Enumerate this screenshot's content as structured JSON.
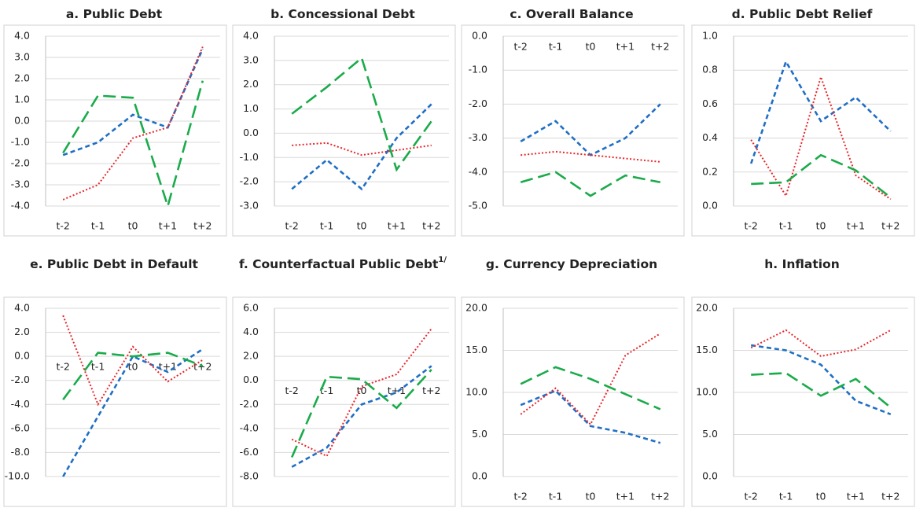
{
  "chart_data": [
    {
      "type": "line",
      "title": "a. Public Debt",
      "categories": [
        "t-2",
        "t-1",
        "t0",
        "t+1",
        "t+2"
      ],
      "x_axis_position": "bottom",
      "ylim": [
        -4,
        4
      ],
      "yticks": [
        {
          "value": -4,
          "label": "-4.0"
        },
        {
          "value": -3,
          "label": "-3.0"
        },
        {
          "value": -2,
          "label": "-2.0"
        },
        {
          "value": -1,
          "label": "-1.0"
        },
        {
          "value": 0,
          "label": "0.0"
        },
        {
          "value": 1,
          "label": "1.0"
        },
        {
          "value": 2,
          "label": "2.0"
        },
        {
          "value": 3,
          "label": "3.0"
        },
        {
          "value": 4,
          "label": "4.0"
        }
      ],
      "grid": true,
      "series": [
        {
          "color": "#1f6fc5",
          "line_style": "dashed",
          "values": [
            -1.6,
            -1.0,
            0.3,
            -0.3,
            3.4
          ]
        },
        {
          "color": "#e8262a",
          "line_style": "dotted",
          "values": [
            -3.7,
            -3.0,
            -0.8,
            -0.3,
            3.5
          ]
        },
        {
          "color": "#1aab4a",
          "line_style": "long-dashed",
          "values": [
            -1.5,
            1.2,
            1.1,
            -4.0,
            1.9
          ]
        }
      ]
    },
    {
      "type": "line",
      "title": "b. Concessional Debt",
      "categories": [
        "t-2",
        "t-1",
        "t0",
        "t+1",
        "t+2"
      ],
      "x_axis_position": "bottom",
      "ylim": [
        -3,
        4
      ],
      "yticks": [
        {
          "value": -3,
          "label": "-3.0"
        },
        {
          "value": -2,
          "label": "-2.0"
        },
        {
          "value": -1,
          "label": "-1.0"
        },
        {
          "value": 0,
          "label": "0.0"
        },
        {
          "value": 1,
          "label": "1.0"
        },
        {
          "value": 2,
          "label": "2.0"
        },
        {
          "value": 3,
          "label": "3.0"
        },
        {
          "value": 4,
          "label": "4.0"
        }
      ],
      "grid": true,
      "series": [
        {
          "color": "#1f6fc5",
          "line_style": "dashed",
          "values": [
            -2.3,
            -1.1,
            -2.3,
            -0.2,
            1.2
          ]
        },
        {
          "color": "#e8262a",
          "line_style": "dotted",
          "values": [
            -0.5,
            -0.4,
            -0.9,
            -0.7,
            -0.5
          ]
        },
        {
          "color": "#1aab4a",
          "line_style": "long-dashed",
          "values": [
            0.8,
            1.9,
            3.1,
            -1.5,
            0.5
          ]
        }
      ]
    },
    {
      "type": "line",
      "title": "c. Overall Balance",
      "categories": [
        "t-2",
        "t-1",
        "t0",
        "t+1",
        "t+2"
      ],
      "x_axis_position": "zero",
      "ylim": [
        -5,
        0
      ],
      "yticks": [
        {
          "value": -5,
          "label": "-5.0"
        },
        {
          "value": -4,
          "label": "-4.0"
        },
        {
          "value": -3,
          "label": "-3.0"
        },
        {
          "value": -2,
          "label": "-2.0"
        },
        {
          "value": -1,
          "label": "-1.0"
        },
        {
          "value": 0,
          "label": "0.0"
        }
      ],
      "grid": true,
      "series": [
        {
          "color": "#1f6fc5",
          "line_style": "dashed",
          "values": [
            -3.1,
            -2.5,
            -3.5,
            -3.0,
            -2.0
          ]
        },
        {
          "color": "#e8262a",
          "line_style": "dotted",
          "values": [
            -3.5,
            -3.4,
            -3.5,
            -3.6,
            -3.7
          ]
        },
        {
          "color": "#1aab4a",
          "line_style": "long-dashed",
          "values": [
            -4.3,
            -4.0,
            -4.7,
            -4.1,
            -4.3
          ]
        }
      ]
    },
    {
      "type": "line",
      "title": "d. Public Debt Relief",
      "categories": [
        "t-2",
        "t-1",
        "t0",
        "t+1",
        "t+2"
      ],
      "x_axis_position": "bottom",
      "ylim": [
        0,
        1
      ],
      "yticks": [
        {
          "value": 0,
          "label": "0.0"
        },
        {
          "value": 0.2,
          "label": "0.2"
        },
        {
          "value": 0.4,
          "label": "0.4"
        },
        {
          "value": 0.6,
          "label": "0.6"
        },
        {
          "value": 0.8,
          "label": "0.8"
        },
        {
          "value": 1,
          "label": "1.0"
        }
      ],
      "grid": true,
      "series": [
        {
          "color": "#1f6fc5",
          "line_style": "dashed",
          "values": [
            0.25,
            0.85,
            0.5,
            0.64,
            0.44
          ]
        },
        {
          "color": "#e8262a",
          "line_style": "dotted",
          "values": [
            0.39,
            0.06,
            0.76,
            0.18,
            0.04
          ]
        },
        {
          "color": "#1aab4a",
          "line_style": "long-dashed",
          "values": [
            0.13,
            0.14,
            0.3,
            0.21,
            0.05
          ]
        }
      ]
    },
    {
      "type": "line",
      "title": "e. Public Debt in Default",
      "categories": [
        "t-2",
        "t-1",
        "t0",
        "t+1",
        "t+2"
      ],
      "x_axis_position": "zero",
      "ylim": [
        -10,
        4
      ],
      "yticks": [
        {
          "value": -10,
          "label": "-10.0"
        },
        {
          "value": -8,
          "label": "-8.0"
        },
        {
          "value": -6,
          "label": "-6.0"
        },
        {
          "value": -4,
          "label": "-4.0"
        },
        {
          "value": -2,
          "label": "-2.0"
        },
        {
          "value": 0,
          "label": "0.0"
        },
        {
          "value": 2,
          "label": "2.0"
        },
        {
          "value": 4,
          "label": "4.0"
        }
      ],
      "grid": true,
      "series": [
        {
          "color": "#1f6fc5",
          "line_style": "dashed",
          "values": [
            -10.0,
            -5.0,
            0.0,
            -1.3,
            0.6
          ]
        },
        {
          "color": "#e8262a",
          "line_style": "dotted",
          "values": [
            3.4,
            -4.0,
            0.8,
            -2.1,
            -0.3
          ]
        },
        {
          "color": "#1aab4a",
          "line_style": "long-dashed",
          "values": [
            -3.6,
            0.3,
            0.0,
            0.3,
            -0.8
          ]
        }
      ]
    },
    {
      "type": "line",
      "title": "f. Counterfactual Public Debt",
      "title_superscript": "1/",
      "categories": [
        "t-2",
        "t-1",
        "t0",
        "t+1",
        "t+2"
      ],
      "x_axis_position": "zero",
      "ylim": [
        -8,
        6
      ],
      "yticks": [
        {
          "value": -8,
          "label": "-8.0"
        },
        {
          "value": -6,
          "label": "-6.0"
        },
        {
          "value": -4,
          "label": "-4.0"
        },
        {
          "value": -2,
          "label": "-2.0"
        },
        {
          "value": 0,
          "label": "0.0"
        },
        {
          "value": 2,
          "label": "2.0"
        },
        {
          "value": 4,
          "label": "4.0"
        },
        {
          "value": 6,
          "label": "6.0"
        }
      ],
      "grid": true,
      "series": [
        {
          "color": "#1f6fc5",
          "line_style": "dashed",
          "values": [
            -7.2,
            -5.6,
            -2.0,
            -1.0,
            1.2
          ]
        },
        {
          "color": "#e8262a",
          "line_style": "dotted",
          "values": [
            -4.9,
            -6.3,
            -0.5,
            0.5,
            4.3
          ]
        },
        {
          "color": "#1aab4a",
          "line_style": "long-dashed",
          "values": [
            -6.4,
            0.3,
            0.1,
            -2.3,
            0.9
          ]
        }
      ]
    },
    {
      "type": "line",
      "title": "g. Currency Depreciation",
      "categories": [
        "t-2",
        "t-1",
        "t0",
        "t+1",
        "t+2"
      ],
      "x_axis_position": "bottom",
      "ylim": [
        0,
        20
      ],
      "yticks": [
        {
          "value": 0,
          "label": "0.0"
        },
        {
          "value": 5,
          "label": "5.0"
        },
        {
          "value": 10,
          "label": "10.0"
        },
        {
          "value": 15,
          "label": "15.0"
        },
        {
          "value": 20,
          "label": "20.0"
        }
      ],
      "grid": true,
      "series": [
        {
          "color": "#1f6fc5",
          "line_style": "dashed",
          "values": [
            8.5,
            10.2,
            6.0,
            5.2,
            4.0
          ]
        },
        {
          "color": "#e8262a",
          "line_style": "dotted",
          "values": [
            7.4,
            10.5,
            6.2,
            14.4,
            17.0
          ]
        },
        {
          "color": "#1aab4a",
          "line_style": "long-dashed",
          "values": [
            11.0,
            13.0,
            11.6,
            9.8,
            8.0
          ]
        }
      ]
    },
    {
      "type": "line",
      "title": "h. Inflation",
      "categories": [
        "t-2",
        "t-1",
        "t0",
        "t+1",
        "t+2"
      ],
      "x_axis_position": "bottom",
      "ylim": [
        0,
        20
      ],
      "yticks": [
        {
          "value": 0,
          "label": "0.0"
        },
        {
          "value": 5,
          "label": "5.0"
        },
        {
          "value": 10,
          "label": "10.0"
        },
        {
          "value": 15,
          "label": "15.0"
        },
        {
          "value": 20,
          "label": "20.0"
        }
      ],
      "grid": true,
      "series": [
        {
          "color": "#1f6fc5",
          "line_style": "dashed",
          "values": [
            15.6,
            15.0,
            13.3,
            9.0,
            7.4
          ]
        },
        {
          "color": "#e8262a",
          "line_style": "dotted",
          "values": [
            15.3,
            17.4,
            14.3,
            15.1,
            17.4
          ]
        },
        {
          "color": "#1aab4a",
          "line_style": "long-dashed",
          "values": [
            12.1,
            12.3,
            9.6,
            11.6,
            8.2
          ]
        }
      ]
    }
  ]
}
